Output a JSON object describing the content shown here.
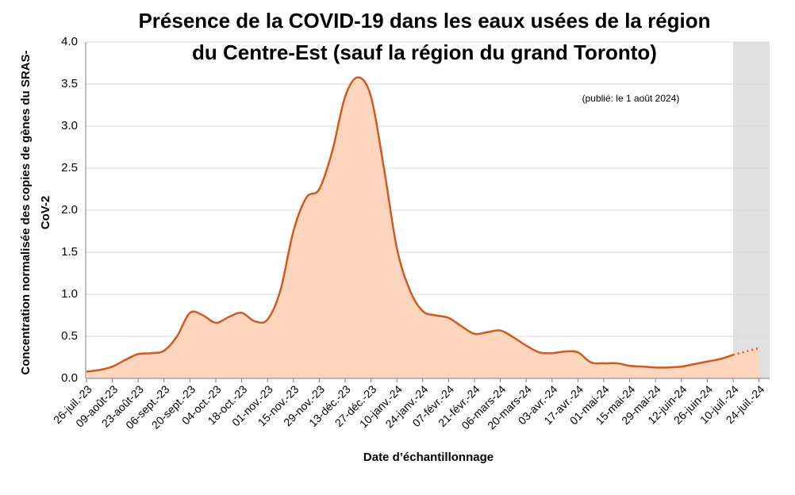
{
  "chart_data": {
    "type": "area",
    "title": [
      "Présence de la COVID-19 dans les eaux usées de la région",
      "du Centre-Est (sauf la région du grand Toronto)"
    ],
    "annotation": "(publié: le 1 août 2024)",
    "x_label": "Date d’échantillonnage",
    "y_label": [
      "Concentration normalisée des copies de gènes du SRAS-",
      "CoV-2"
    ],
    "categories": [
      "26-juil.-23",
      null,
      "09-août-23",
      null,
      "23-août-23",
      null,
      "06-sept.-23",
      null,
      "20-sept.-23",
      null,
      "04-oct.-23",
      null,
      "18-oct.-23",
      null,
      "01-nov.-23",
      null,
      "15-nov.-23",
      null,
      "29-nov.-23",
      null,
      "13-déc.-23",
      null,
      "27-déc.-23",
      null,
      "10-janv.-24",
      null,
      "24-janv.-24",
      null,
      "07-févr.-24",
      null,
      "21-févr.-24",
      null,
      "06-mars-24",
      null,
      "20-mars-24",
      null,
      "03-avr.-24",
      null,
      "17-avr.-24",
      null,
      "01-mai-24",
      null,
      "15-mai-24",
      null,
      "29-mai-24",
      null,
      "12-juin-24",
      null,
      "26-juin-24",
      null,
      "10-juil.-24",
      null,
      "24-juil.-24"
    ],
    "values": [
      0.08,
      0.1,
      0.14,
      0.22,
      0.29,
      0.3,
      0.33,
      0.5,
      0.78,
      0.75,
      0.66,
      0.73,
      0.78,
      0.68,
      0.7,
      1.05,
      1.75,
      2.15,
      2.25,
      2.7,
      3.35,
      3.58,
      3.35,
      2.5,
      1.55,
      1.05,
      0.8,
      0.75,
      0.72,
      0.62,
      0.53,
      0.55,
      0.57,
      0.49,
      0.39,
      0.31,
      0.3,
      0.32,
      0.31,
      0.19,
      0.18,
      0.18,
      0.15,
      0.14,
      0.13,
      0.13,
      0.14,
      0.17,
      0.2,
      0.23,
      0.28,
      0.32,
      0.36
    ],
    "projection_start": "10-juil.-24",
    "color": "#cf5a22",
    "fill": "#fdd6bd",
    "shade_color": "#e0e0e0",
    "ylim": [
      0,
      4
    ],
    "yticks": [
      {
        "value": 0,
        "label": "0.0"
      },
      0.5,
      {
        "value": 1,
        "label": "1.0"
      },
      1.5,
      {
        "value": 2,
        "label": "2.0"
      },
      2.5,
      {
        "value": 3,
        "label": "3.0"
      },
      3.5,
      {
        "value": 4,
        "label": "4.0"
      }
    ],
    "grid": true
  }
}
